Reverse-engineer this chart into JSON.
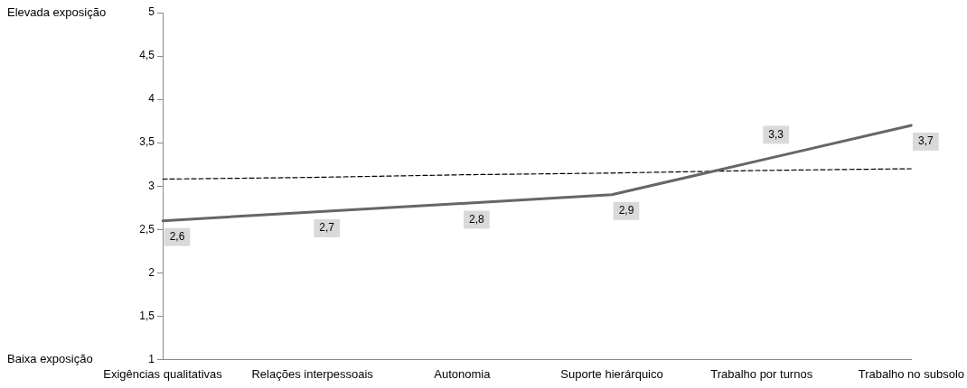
{
  "chart_data": {
    "type": "line",
    "categories": [
      "Exigências qualitativas",
      "Relações interpessoais",
      "Autonomia",
      "Suporte hierárquico",
      "Trabalho por turnos",
      "Trabalho no subsolo"
    ],
    "series": [
      {
        "color": "#666666",
        "values": [
          2.6,
          2.7,
          2.8,
          2.9,
          3.3,
          3.7
        ],
        "value_labels": [
          "2,6",
          "2,7",
          "2,8",
          "2,9",
          "3,3",
          "3,7"
        ]
      },
      {
        "type": "line",
        "color": "#000000",
        "line_style": "dashed",
        "values": [
          3.08,
          3.1,
          3.13,
          3.15,
          3.18,
          3.2
        ]
      }
    ],
    "ylim": [
      1,
      5
    ],
    "yticks": [
      1,
      {
        "value": 1.5,
        "label": "1,5"
      },
      2,
      {
        "value": 2.5,
        "label": "2,5"
      },
      3,
      {
        "value": 3.5,
        "label": "3,5"
      },
      4,
      {
        "value": 4.5,
        "label": "4,5"
      },
      5
    ],
    "annotations": [
      "Elevada exposição",
      "Baixa exposição"
    ],
    "grid": false,
    "legend": false,
    "marker": "none",
    "line_style": "solid"
  }
}
